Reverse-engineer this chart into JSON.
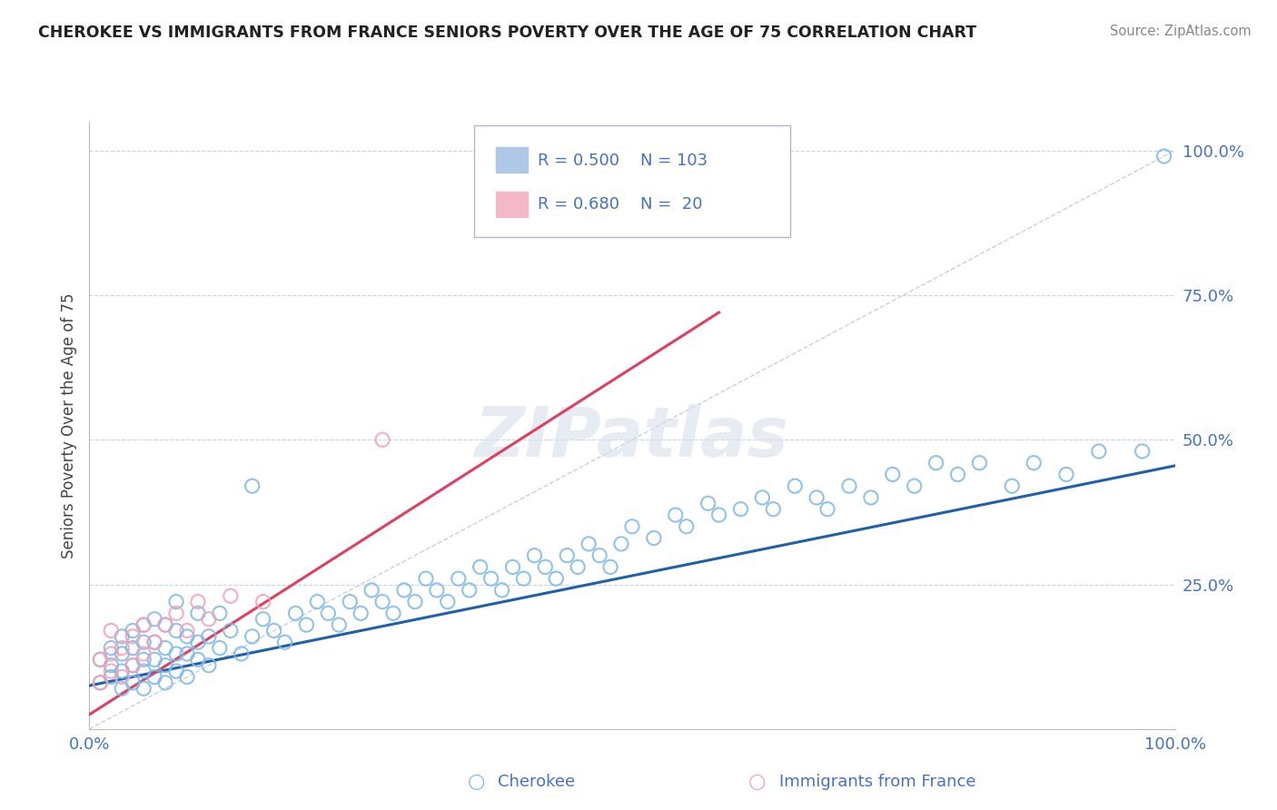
{
  "title": "CHEROKEE VS IMMIGRANTS FROM FRANCE SENIORS POVERTY OVER THE AGE OF 75 CORRELATION CHART",
  "source": "Source: ZipAtlas.com",
  "ylabel": "Seniors Poverty Over the Age of 75",
  "xlim": [
    0,
    1
  ],
  "ylim": [
    0,
    1.05
  ],
  "legend_r_blue": "0.500",
  "legend_n_blue": "103",
  "legend_r_pink": "0.680",
  "legend_n_pink": "20",
  "blue_scatter_x": [
    0.01,
    0.01,
    0.02,
    0.02,
    0.02,
    0.03,
    0.03,
    0.03,
    0.03,
    0.04,
    0.04,
    0.04,
    0.04,
    0.05,
    0.05,
    0.05,
    0.05,
    0.05,
    0.06,
    0.06,
    0.06,
    0.06,
    0.07,
    0.07,
    0.07,
    0.07,
    0.08,
    0.08,
    0.08,
    0.08,
    0.09,
    0.09,
    0.09,
    0.1,
    0.1,
    0.1,
    0.11,
    0.11,
    0.12,
    0.12,
    0.13,
    0.14,
    0.15,
    0.16,
    0.17,
    0.18,
    0.19,
    0.2,
    0.21,
    0.22,
    0.23,
    0.24,
    0.25,
    0.26,
    0.27,
    0.28,
    0.29,
    0.3,
    0.31,
    0.32,
    0.33,
    0.34,
    0.35,
    0.36,
    0.37,
    0.38,
    0.39,
    0.4,
    0.41,
    0.42,
    0.43,
    0.44,
    0.45,
    0.46,
    0.47,
    0.48,
    0.49,
    0.5,
    0.52,
    0.54,
    0.55,
    0.57,
    0.58,
    0.6,
    0.62,
    0.63,
    0.65,
    0.67,
    0.68,
    0.7,
    0.72,
    0.74,
    0.76,
    0.78,
    0.8,
    0.82,
    0.85,
    0.87,
    0.9,
    0.93,
    0.97,
    0.99,
    0.15
  ],
  "blue_scatter_y": [
    0.08,
    0.12,
    0.09,
    0.11,
    0.14,
    0.07,
    0.1,
    0.13,
    0.16,
    0.08,
    0.11,
    0.14,
    0.17,
    0.07,
    0.1,
    0.12,
    0.15,
    0.18,
    0.09,
    0.12,
    0.15,
    0.19,
    0.08,
    0.11,
    0.14,
    0.18,
    0.1,
    0.13,
    0.17,
    0.22,
    0.09,
    0.13,
    0.16,
    0.12,
    0.15,
    0.2,
    0.11,
    0.16,
    0.14,
    0.2,
    0.17,
    0.13,
    0.16,
    0.19,
    0.17,
    0.15,
    0.2,
    0.18,
    0.22,
    0.2,
    0.18,
    0.22,
    0.2,
    0.24,
    0.22,
    0.2,
    0.24,
    0.22,
    0.26,
    0.24,
    0.22,
    0.26,
    0.24,
    0.28,
    0.26,
    0.24,
    0.28,
    0.26,
    0.3,
    0.28,
    0.26,
    0.3,
    0.28,
    0.32,
    0.3,
    0.28,
    0.32,
    0.35,
    0.33,
    0.37,
    0.35,
    0.39,
    0.37,
    0.38,
    0.4,
    0.38,
    0.42,
    0.4,
    0.38,
    0.42,
    0.4,
    0.44,
    0.42,
    0.46,
    0.44,
    0.46,
    0.42,
    0.46,
    0.44,
    0.48,
    0.48,
    0.99,
    0.42
  ],
  "pink_scatter_x": [
    0.01,
    0.01,
    0.02,
    0.02,
    0.02,
    0.03,
    0.03,
    0.04,
    0.04,
    0.05,
    0.05,
    0.06,
    0.07,
    0.08,
    0.09,
    0.1,
    0.11,
    0.13,
    0.16,
    0.27
  ],
  "pink_scatter_y": [
    0.08,
    0.12,
    0.1,
    0.13,
    0.17,
    0.09,
    0.14,
    0.11,
    0.16,
    0.13,
    0.18,
    0.15,
    0.18,
    0.2,
    0.17,
    0.22,
    0.19,
    0.23,
    0.22,
    0.5
  ],
  "blue_line_x": [
    0.0,
    1.0
  ],
  "blue_line_y": [
    0.075,
    0.455
  ],
  "pink_line_x": [
    0.0,
    0.58
  ],
  "pink_line_y": [
    0.025,
    0.72
  ],
  "ref_line_x": [
    0.0,
    1.0
  ],
  "ref_line_y": [
    0.0,
    1.0
  ],
  "watermark": "ZIPatlas",
  "bg_color": "#ffffff",
  "grid_color": "#c8d4e8",
  "blue_dot_color": "#7eb8e8",
  "pink_dot_color": "#f0a0b8",
  "blue_line_color": "#2060a8",
  "pink_line_color": "#e04060",
  "ref_line_color": "#c8d0e0",
  "tick_color": "#4472c4",
  "title_color": "#222222",
  "ylabel_color": "#444444"
}
